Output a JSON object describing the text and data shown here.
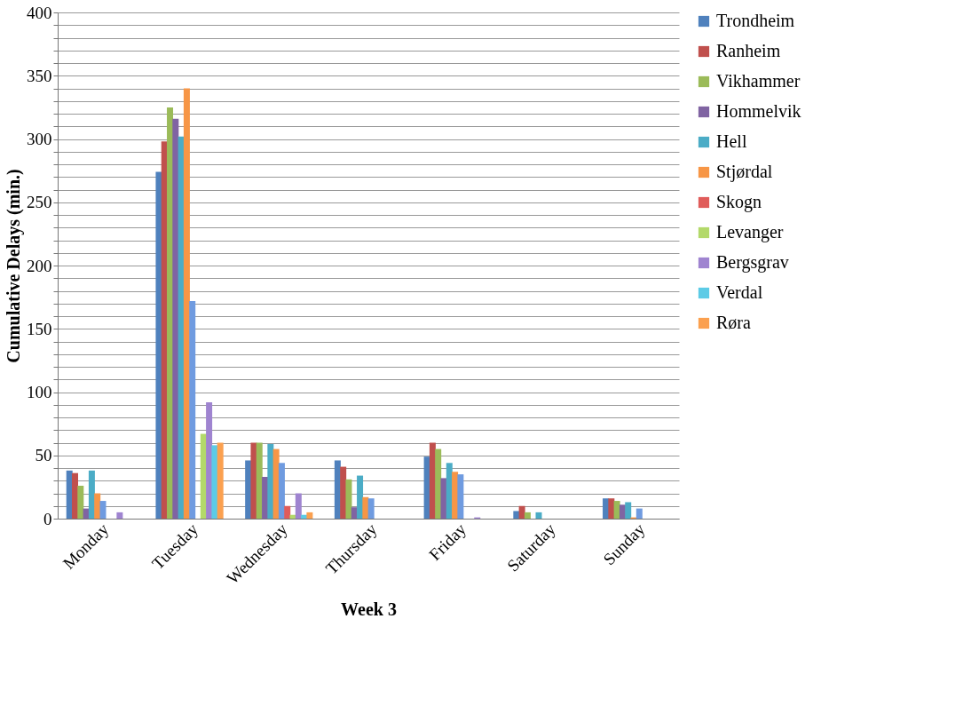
{
  "chart_data": {
    "type": "bar",
    "xlabel": "Week 3",
    "ylabel": "Cumulative Delays (min.)",
    "categories": [
      "Monday",
      "Tuesday",
      "Wednesday",
      "Thursday",
      "Friday",
      "Saturday",
      "Sunday"
    ],
    "series": [
      {
        "name": "Trondheim",
        "color": "#4f81bd",
        "values": [
          38,
          274,
          46,
          46,
          49,
          6,
          16
        ]
      },
      {
        "name": "Ranheim",
        "color": "#c0504d",
        "values": [
          36,
          298,
          60,
          41,
          60,
          10,
          16
        ]
      },
      {
        "name": "Vikhammer",
        "color": "#9bbb59",
        "values": [
          26,
          325,
          60,
          31,
          55,
          5,
          14
        ]
      },
      {
        "name": "Hommelvik",
        "color": "#8064a2",
        "values": [
          8,
          316,
          33,
          9,
          32,
          0,
          11
        ]
      },
      {
        "name": "Hell",
        "color": "#4bacc6",
        "values": [
          38,
          302,
          59,
          34,
          44,
          5,
          13
        ]
      },
      {
        "name": "Stjørdal",
        "color": "#f79646",
        "values": [
          20,
          340,
          55,
          17,
          37,
          0,
          1
        ]
      },
      {
        "color": "#6f9be0",
        "values": [
          14,
          172,
          44,
          16,
          35,
          0,
          8
        ]
      },
      {
        "name": "Skogn",
        "color": "#e05c5a",
        "values": [
          0,
          0,
          10,
          0,
          0,
          0,
          0
        ]
      },
      {
        "name": "Levanger",
        "color": "#b3d96a",
        "values": [
          0,
          67,
          3,
          0,
          0,
          0,
          0
        ]
      },
      {
        "name": "Bergsgrav",
        "color": "#9f84d0",
        "values": [
          5,
          92,
          20,
          0,
          1,
          0,
          0
        ]
      },
      {
        "name": "Verdal",
        "color": "#5ccbe6",
        "values": [
          0,
          58,
          3,
          0,
          0,
          0,
          0
        ]
      },
      {
        "name": "Røra",
        "color": "#fba04f",
        "values": [
          0,
          60,
          5,
          0,
          0,
          0,
          0
        ]
      }
    ],
    "ylim": [
      0,
      400
    ],
    "yticks": [
      0,
      {
        "value": 10,
        "label": null
      },
      {
        "value": 20,
        "label": null
      },
      {
        "value": 30,
        "label": null
      },
      {
        "value": 40,
        "label": null
      },
      50,
      {
        "value": 60,
        "label": null
      },
      {
        "value": 70,
        "label": null
      },
      {
        "value": 80,
        "label": null
      },
      {
        "value": 90,
        "label": null
      },
      100,
      {
        "value": 110,
        "label": null
      },
      {
        "value": 120,
        "label": null
      },
      {
        "value": 130,
        "label": null
      },
      {
        "value": 140,
        "label": null
      },
      150,
      {
        "value": 160,
        "label": null
      },
      {
        "value": 170,
        "label": null
      },
      {
        "value": 180,
        "label": null
      },
      {
        "value": 190,
        "label": null
      },
      200,
      {
        "value": 210,
        "label": null
      },
      {
        "value": 220,
        "label": null
      },
      {
        "value": 230,
        "label": null
      },
      {
        "value": 240,
        "label": null
      },
      250,
      {
        "value": 260,
        "label": null
      },
      {
        "value": 270,
        "label": null
      },
      {
        "value": 280,
        "label": null
      },
      {
        "value": 290,
        "label": null
      },
      300,
      {
        "value": 310,
        "label": null
      },
      {
        "value": 320,
        "label": null
      },
      {
        "value": 330,
        "label": null
      },
      {
        "value": 340,
        "label": null
      },
      350,
      {
        "value": 360,
        "label": null
      },
      {
        "value": 370,
        "label": null
      },
      {
        "value": 380,
        "label": null
      },
      {
        "value": 390,
        "label": null
      },
      400
    ],
    "grid": "y",
    "legend": "right"
  }
}
